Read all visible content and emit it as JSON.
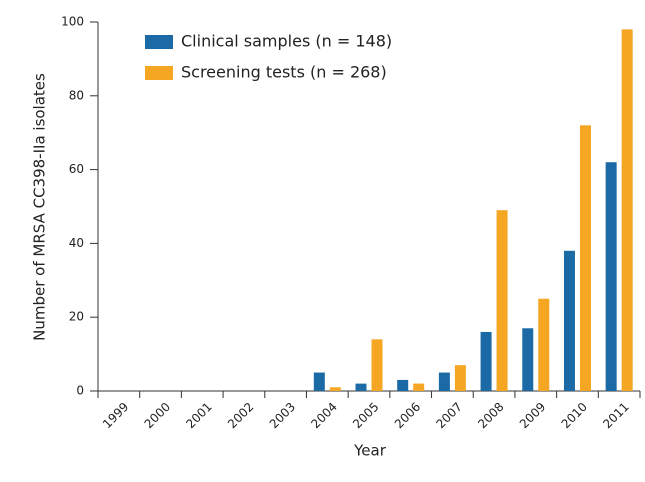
{
  "chart_data": {
    "type": "bar",
    "x_label": "Year",
    "y_label": "Number of MRSA CC398-IIa isolates",
    "categories": [
      "1999",
      "2000",
      "2001",
      "2002",
      "2003",
      "2004",
      "2005",
      "2006",
      "2007",
      "2008",
      "2009",
      "2010",
      "2011"
    ],
    "series": [
      {
        "name": "Clinical samples (n = 148)",
        "color": "#1b6aa5",
        "values": [
          0,
          0,
          0,
          0,
          0,
          5,
          2,
          3,
          5,
          16,
          17,
          38,
          62
        ]
      },
      {
        "name": "Screening tests (n = 268)",
        "color": "#f5a623",
        "values": [
          0,
          0,
          0,
          0,
          0,
          1,
          14,
          2,
          7,
          49,
          25,
          72,
          98
        ]
      }
    ],
    "ylim": [
      0,
      100
    ],
    "yticks": [
      0,
      20,
      40,
      60,
      80,
      100
    ],
    "grid": false
  }
}
